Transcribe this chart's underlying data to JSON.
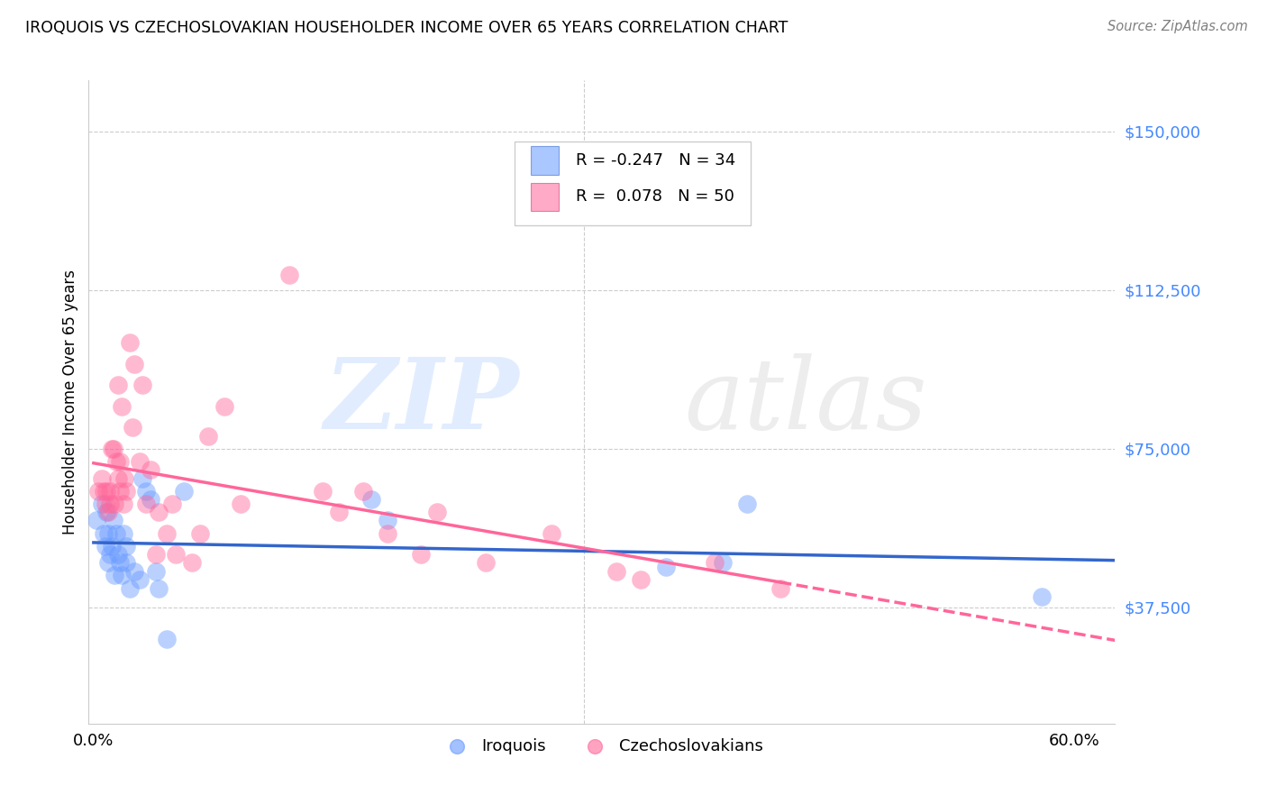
{
  "title": "IROQUOIS VS CZECHOSLOVAKIAN HOUSEHOLDER INCOME OVER 65 YEARS CORRELATION CHART",
  "source": "Source: ZipAtlas.com",
  "ylabel_label": "Householder Income Over 65 years",
  "y_tick_labels": [
    "$150,000",
    "$112,500",
    "$75,000",
    "$37,500"
  ],
  "y_tick_values": [
    150000,
    112500,
    75000,
    37500
  ],
  "y_min": 10000,
  "y_max": 162000,
  "x_min": -0.003,
  "x_max": 0.625,
  "legend_iroquois": "Iroquois",
  "legend_czech": "Czechoslovakians",
  "r_iroquois": "-0.247",
  "n_iroquois": "34",
  "r_czech": "0.078",
  "n_czech": "50",
  "color_iroquois": "#6699FF",
  "color_czech": "#FF6699",
  "color_iroquois_line": "#3366CC",
  "color_czech_line": "#FF6699",
  "color_yaxis": "#4488FF",
  "iroquois_x": [
    0.002,
    0.005,
    0.006,
    0.007,
    0.008,
    0.009,
    0.009,
    0.01,
    0.011,
    0.012,
    0.013,
    0.014,
    0.015,
    0.016,
    0.017,
    0.018,
    0.02,
    0.02,
    0.022,
    0.025,
    0.028,
    0.03,
    0.032,
    0.035,
    0.038,
    0.04,
    0.045,
    0.055,
    0.17,
    0.18,
    0.35,
    0.385,
    0.4,
    0.58
  ],
  "iroquois_y": [
    58000,
    62000,
    55000,
    52000,
    60000,
    48000,
    55000,
    50000,
    52000,
    58000,
    45000,
    55000,
    50000,
    48000,
    45000,
    55000,
    52000,
    48000,
    42000,
    46000,
    44000,
    68000,
    65000,
    63000,
    46000,
    42000,
    30000,
    65000,
    63000,
    58000,
    47000,
    48000,
    62000,
    40000
  ],
  "czech_x": [
    0.003,
    0.005,
    0.006,
    0.007,
    0.008,
    0.009,
    0.01,
    0.01,
    0.011,
    0.012,
    0.013,
    0.014,
    0.015,
    0.015,
    0.016,
    0.016,
    0.017,
    0.018,
    0.019,
    0.02,
    0.022,
    0.024,
    0.025,
    0.028,
    0.03,
    0.032,
    0.035,
    0.038,
    0.04,
    0.045,
    0.048,
    0.05,
    0.06,
    0.065,
    0.07,
    0.08,
    0.09,
    0.12,
    0.14,
    0.15,
    0.165,
    0.18,
    0.2,
    0.21,
    0.24,
    0.28,
    0.32,
    0.335,
    0.38,
    0.42
  ],
  "czech_y": [
    65000,
    68000,
    65000,
    62000,
    65000,
    60000,
    62000,
    65000,
    75000,
    75000,
    62000,
    72000,
    68000,
    90000,
    72000,
    65000,
    85000,
    62000,
    68000,
    65000,
    100000,
    80000,
    95000,
    72000,
    90000,
    62000,
    70000,
    50000,
    60000,
    55000,
    62000,
    50000,
    48000,
    55000,
    78000,
    85000,
    62000,
    116000,
    65000,
    60000,
    65000,
    55000,
    50000,
    60000,
    48000,
    55000,
    46000,
    44000,
    48000,
    42000
  ]
}
